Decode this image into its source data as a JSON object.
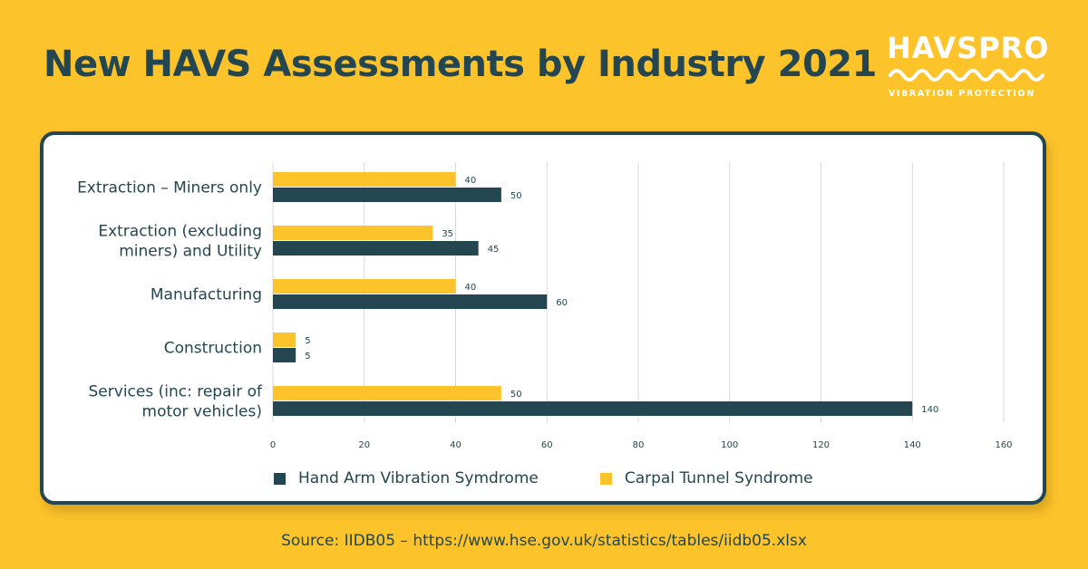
{
  "title": "New HAVS Assessments by Industry 2021",
  "logo": {
    "wordmark": "HAVSPRO",
    "tagline": "VIBRATION PROTECTION",
    "wave_icon": "wave-icon"
  },
  "source": "Source: IIDB05 – https://www.hse.gov.uk/statistics/tables/iidb05.xlsx",
  "colors": {
    "background": "#fcc32b",
    "havs": "#234650",
    "carpal": "#fcc32b",
    "text": "#234650",
    "grid": "#d9d9d9"
  },
  "chart_data": {
    "type": "bar",
    "orientation": "horizontal",
    "title": "New HAVS Assessments by Industry 2021",
    "categories": [
      [
        "Extraction – Miners only"
      ],
      [
        "Extraction (excluding",
        "miners) and Utility"
      ],
      [
        "Manufacturing"
      ],
      [
        "Construction"
      ],
      [
        "Services (inc: repair of",
        "motor vehicles)"
      ]
    ],
    "series": [
      {
        "name": "Carpal Tunnel Syndrome",
        "color": "#fcc32b",
        "values": [
          40,
          35,
          40,
          5,
          50
        ]
      },
      {
        "name": "Hand Arm Vibration Symdrome",
        "color": "#234650",
        "values": [
          50,
          45,
          60,
          5,
          140
        ]
      }
    ],
    "xlim": [
      0,
      160
    ],
    "xticks": [
      0,
      20,
      40,
      60,
      80,
      100,
      120,
      140,
      160
    ],
    "grid": true,
    "data_labels": true,
    "legend": {
      "position": "bottom",
      "items": [
        {
          "label": "Hand Arm Vibration Symdrome",
          "color": "#234650"
        },
        {
          "label": "Carpal Tunnel Syndrome",
          "color": "#fcc32b"
        }
      ]
    }
  }
}
